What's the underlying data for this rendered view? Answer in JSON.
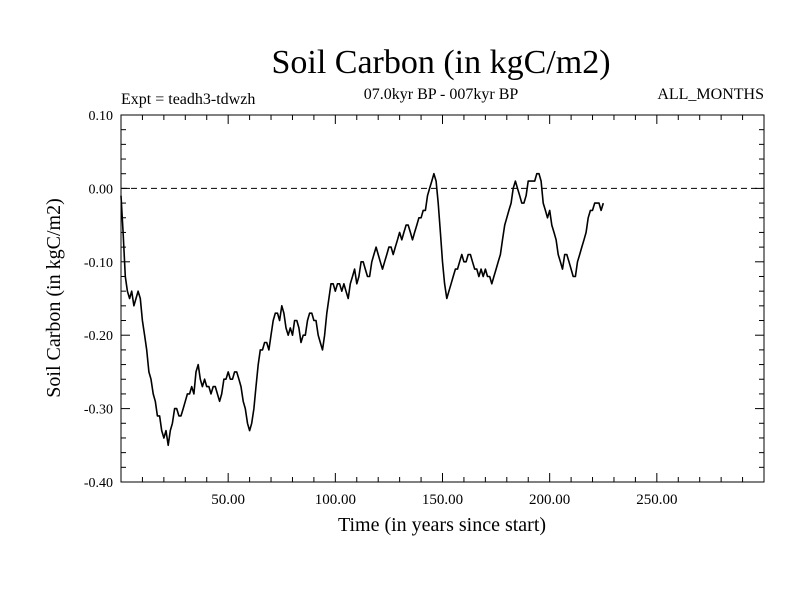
{
  "chart_data": {
    "type": "line",
    "title": "Soil Carbon (in kgC/m2)",
    "expt_label": "Expt = teadh3-tdwzh",
    "period_label": "07.0kyr BP - 007kyr BP",
    "months_label": "ALL_MONTHS",
    "xlabel": "Time (in years since start)",
    "ylabel": "Soil Carbon (in kgC/m2)",
    "xlim": [
      0,
      300
    ],
    "ylim": [
      -0.4,
      0.1
    ],
    "x_ticks": [
      {
        "value": 50,
        "label": "50.00"
      },
      {
        "value": 100,
        "label": "100.00"
      },
      {
        "value": 150,
        "label": "150.00"
      },
      {
        "value": 200,
        "label": "200.00"
      },
      {
        "value": 250,
        "label": "250.00"
      }
    ],
    "y_ticks": [
      {
        "value": 0.1,
        "label": "0.10"
      },
      {
        "value": 0.0,
        "label": "0.00"
      },
      {
        "value": -0.1,
        "label": "-0.10"
      },
      {
        "value": -0.2,
        "label": "-0.20"
      },
      {
        "value": -0.3,
        "label": "-0.30"
      },
      {
        "value": -0.4,
        "label": "-0.40"
      }
    ],
    "reference_line": {
      "value": 0.0,
      "style": "dashed"
    },
    "series": [
      {
        "color": "#000000",
        "points": [
          [
            0,
            -0.01
          ],
          [
            1,
            -0.06
          ],
          [
            2,
            -0.12
          ],
          [
            3,
            -0.14
          ],
          [
            4,
            -0.15
          ],
          [
            5,
            -0.14
          ],
          [
            6,
            -0.16
          ],
          [
            7,
            -0.15
          ],
          [
            8,
            -0.14
          ],
          [
            9,
            -0.15
          ],
          [
            10,
            -0.18
          ],
          [
            11,
            -0.2
          ],
          [
            12,
            -0.22
          ],
          [
            13,
            -0.25
          ],
          [
            14,
            -0.26
          ],
          [
            15,
            -0.28
          ],
          [
            16,
            -0.29
          ],
          [
            17,
            -0.31
          ],
          [
            18,
            -0.31
          ],
          [
            19,
            -0.33
          ],
          [
            20,
            -0.34
          ],
          [
            21,
            -0.33
          ],
          [
            22,
            -0.35
          ],
          [
            23,
            -0.33
          ],
          [
            24,
            -0.32
          ],
          [
            25,
            -0.3
          ],
          [
            26,
            -0.3
          ],
          [
            27,
            -0.31
          ],
          [
            28,
            -0.31
          ],
          [
            29,
            -0.3
          ],
          [
            30,
            -0.29
          ],
          [
            31,
            -0.28
          ],
          [
            32,
            -0.28
          ],
          [
            33,
            -0.27
          ],
          [
            34,
            -0.28
          ],
          [
            35,
            -0.25
          ],
          [
            36,
            -0.24
          ],
          [
            37,
            -0.26
          ],
          [
            38,
            -0.27
          ],
          [
            39,
            -0.26
          ],
          [
            40,
            -0.27
          ],
          [
            41,
            -0.27
          ],
          [
            42,
            -0.28
          ],
          [
            43,
            -0.27
          ],
          [
            44,
            -0.27
          ],
          [
            45,
            -0.28
          ],
          [
            46,
            -0.29
          ],
          [
            47,
            -0.28
          ],
          [
            48,
            -0.26
          ],
          [
            49,
            -0.26
          ],
          [
            50,
            -0.25
          ],
          [
            51,
            -0.26
          ],
          [
            52,
            -0.26
          ],
          [
            53,
            -0.25
          ],
          [
            54,
            -0.25
          ],
          [
            55,
            -0.26
          ],
          [
            56,
            -0.27
          ],
          [
            57,
            -0.29
          ],
          [
            58,
            -0.3
          ],
          [
            59,
            -0.32
          ],
          [
            60,
            -0.33
          ],
          [
            61,
            -0.32
          ],
          [
            62,
            -0.3
          ],
          [
            63,
            -0.27
          ],
          [
            64,
            -0.24
          ],
          [
            65,
            -0.22
          ],
          [
            66,
            -0.22
          ],
          [
            67,
            -0.21
          ],
          [
            68,
            -0.21
          ],
          [
            69,
            -0.22
          ],
          [
            70,
            -0.2
          ],
          [
            71,
            -0.18
          ],
          [
            72,
            -0.17
          ],
          [
            73,
            -0.17
          ],
          [
            74,
            -0.18
          ],
          [
            75,
            -0.16
          ],
          [
            76,
            -0.17
          ],
          [
            77,
            -0.19
          ],
          [
            78,
            -0.2
          ],
          [
            79,
            -0.19
          ],
          [
            80,
            -0.2
          ],
          [
            81,
            -0.18
          ],
          [
            82,
            -0.18
          ],
          [
            83,
            -0.19
          ],
          [
            84,
            -0.21
          ],
          [
            85,
            -0.2
          ],
          [
            86,
            -0.2
          ],
          [
            87,
            -0.18
          ],
          [
            88,
            -0.17
          ],
          [
            89,
            -0.17
          ],
          [
            90,
            -0.18
          ],
          [
            91,
            -0.18
          ],
          [
            92,
            -0.2
          ],
          [
            93,
            -0.21
          ],
          [
            94,
            -0.22
          ],
          [
            95,
            -0.2
          ],
          [
            96,
            -0.17
          ],
          [
            97,
            -0.15
          ],
          [
            98,
            -0.13
          ],
          [
            99,
            -0.13
          ],
          [
            100,
            -0.14
          ],
          [
            101,
            -0.13
          ],
          [
            102,
            -0.13
          ],
          [
            103,
            -0.14
          ],
          [
            104,
            -0.13
          ],
          [
            105,
            -0.14
          ],
          [
            106,
            -0.15
          ],
          [
            107,
            -0.13
          ],
          [
            108,
            -0.12
          ],
          [
            109,
            -0.11
          ],
          [
            110,
            -0.13
          ],
          [
            111,
            -0.12
          ],
          [
            112,
            -0.1
          ],
          [
            113,
            -0.1
          ],
          [
            114,
            -0.11
          ],
          [
            115,
            -0.12
          ],
          [
            116,
            -0.12
          ],
          [
            117,
            -0.1
          ],
          [
            118,
            -0.09
          ],
          [
            119,
            -0.08
          ],
          [
            120,
            -0.09
          ],
          [
            121,
            -0.1
          ],
          [
            122,
            -0.11
          ],
          [
            123,
            -0.1
          ],
          [
            124,
            -0.09
          ],
          [
            125,
            -0.08
          ],
          [
            126,
            -0.08
          ],
          [
            127,
            -0.09
          ],
          [
            128,
            -0.08
          ],
          [
            129,
            -0.07
          ],
          [
            130,
            -0.06
          ],
          [
            131,
            -0.07
          ],
          [
            132,
            -0.06
          ],
          [
            133,
            -0.05
          ],
          [
            134,
            -0.05
          ],
          [
            135,
            -0.06
          ],
          [
            136,
            -0.07
          ],
          [
            137,
            -0.06
          ],
          [
            138,
            -0.05
          ],
          [
            139,
            -0.04
          ],
          [
            140,
            -0.04
          ],
          [
            141,
            -0.03
          ],
          [
            142,
            -0.03
          ],
          [
            143,
            -0.01
          ],
          [
            144,
            0.0
          ],
          [
            145,
            0.01
          ],
          [
            146,
            0.02
          ],
          [
            147,
            0.01
          ],
          [
            148,
            -0.02
          ],
          [
            149,
            -0.06
          ],
          [
            150,
            -0.1
          ],
          [
            151,
            -0.13
          ],
          [
            152,
            -0.15
          ],
          [
            153,
            -0.14
          ],
          [
            154,
            -0.13
          ],
          [
            155,
            -0.12
          ],
          [
            156,
            -0.11
          ],
          [
            157,
            -0.11
          ],
          [
            158,
            -0.1
          ],
          [
            159,
            -0.09
          ],
          [
            160,
            -0.1
          ],
          [
            161,
            -0.1
          ],
          [
            162,
            -0.09
          ],
          [
            163,
            -0.09
          ],
          [
            164,
            -0.1
          ],
          [
            165,
            -0.11
          ],
          [
            166,
            -0.11
          ],
          [
            167,
            -0.12
          ],
          [
            168,
            -0.11
          ],
          [
            169,
            -0.12
          ],
          [
            170,
            -0.11
          ],
          [
            171,
            -0.12
          ],
          [
            172,
            -0.12
          ],
          [
            173,
            -0.13
          ],
          [
            174,
            -0.12
          ],
          [
            175,
            -0.11
          ],
          [
            176,
            -0.1
          ],
          [
            177,
            -0.09
          ],
          [
            178,
            -0.07
          ],
          [
            179,
            -0.05
          ],
          [
            180,
            -0.04
          ],
          [
            181,
            -0.03
          ],
          [
            182,
            -0.02
          ],
          [
            183,
            0.0
          ],
          [
            184,
            0.01
          ],
          [
            185,
            0.0
          ],
          [
            186,
            -0.01
          ],
          [
            187,
            -0.02
          ],
          [
            188,
            -0.02
          ],
          [
            189,
            -0.01
          ],
          [
            190,
            0.01
          ],
          [
            191,
            0.01
          ],
          [
            192,
            0.01
          ],
          [
            193,
            0.01
          ],
          [
            194,
            0.02
          ],
          [
            195,
            0.02
          ],
          [
            196,
            0.01
          ],
          [
            197,
            -0.02
          ],
          [
            198,
            -0.03
          ],
          [
            199,
            -0.04
          ],
          [
            200,
            -0.03
          ],
          [
            201,
            -0.05
          ],
          [
            202,
            -0.06
          ],
          [
            203,
            -0.07
          ],
          [
            204,
            -0.09
          ],
          [
            205,
            -0.1
          ],
          [
            206,
            -0.11
          ],
          [
            207,
            -0.09
          ],
          [
            208,
            -0.09
          ],
          [
            209,
            -0.1
          ],
          [
            210,
            -0.11
          ],
          [
            211,
            -0.12
          ],
          [
            212,
            -0.12
          ],
          [
            213,
            -0.1
          ],
          [
            214,
            -0.09
          ],
          [
            215,
            -0.08
          ],
          [
            216,
            -0.07
          ],
          [
            217,
            -0.06
          ],
          [
            218,
            -0.04
          ],
          [
            219,
            -0.03
          ],
          [
            220,
            -0.03
          ],
          [
            221,
            -0.02
          ],
          [
            222,
            -0.02
          ],
          [
            223,
            -0.02
          ],
          [
            224,
            -0.03
          ],
          [
            225,
            -0.02
          ]
        ]
      }
    ]
  }
}
